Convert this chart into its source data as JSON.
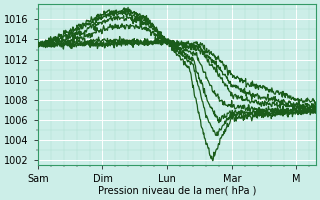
{
  "title": "",
  "xlabel": "Pression niveau de la mer( hPa )",
  "ylabel": "",
  "ylim": [
    1001.5,
    1017.5
  ],
  "yticks": [
    1002,
    1004,
    1006,
    1008,
    1010,
    1012,
    1014,
    1016
  ],
  "xlim": [
    0,
    4.3
  ],
  "xtick_positions": [
    0,
    1,
    2,
    3,
    4
  ],
  "xtick_labels": [
    "Sam",
    "Dim",
    "Lun",
    "Mar",
    "M"
  ],
  "bg_color": "#cceee8",
  "grid_major_color": "#ffffff",
  "grid_minor_color": "#aaddcc",
  "line_color": "#1a5c1a",
  "line_width": 0.9,
  "trajectories": [
    [
      0,
      1013.5,
      0.3,
      1014.2,
      0.7,
      1015.5,
      1.1,
      1016.8,
      1.4,
      1016.9,
      1.7,
      1016.0,
      2.0,
      1013.8,
      2.35,
      1011.0,
      2.55,
      1004.8,
      2.7,
      1002.0,
      2.85,
      1004.5,
      3.0,
      1006.2,
      3.5,
      1006.5,
      4.0,
      1006.8,
      4.3,
      1006.9
    ],
    [
      0,
      1013.5,
      0.3,
      1014.0,
      0.7,
      1015.2,
      1.1,
      1016.5,
      1.4,
      1016.6,
      1.7,
      1015.8,
      2.0,
      1013.8,
      2.4,
      1011.5,
      2.6,
      1006.5,
      2.75,
      1004.5,
      2.9,
      1005.8,
      3.0,
      1006.5,
      3.5,
      1006.6,
      4.0,
      1006.7,
      4.3,
      1006.8
    ],
    [
      0,
      1013.5,
      0.3,
      1013.8,
      0.7,
      1014.8,
      1.1,
      1016.0,
      1.4,
      1016.2,
      1.7,
      1015.5,
      2.0,
      1013.8,
      2.4,
      1012.0,
      2.65,
      1007.5,
      2.8,
      1006.0,
      3.0,
      1006.8,
      3.5,
      1006.8,
      4.0,
      1006.8,
      4.3,
      1007.0
    ],
    [
      0,
      1013.5,
      0.3,
      1013.6,
      0.7,
      1014.2,
      1.1,
      1015.2,
      1.4,
      1015.4,
      1.7,
      1015.0,
      2.0,
      1013.8,
      2.45,
      1012.5,
      2.7,
      1009.0,
      2.9,
      1007.5,
      3.2,
      1007.2,
      3.5,
      1007.0,
      4.0,
      1007.0,
      4.3,
      1007.1
    ],
    [
      0,
      1013.5,
      0.5,
      1013.6,
      1.0,
      1013.9,
      1.5,
      1013.8,
      2.0,
      1013.8,
      2.5,
      1013.0,
      2.8,
      1010.5,
      3.0,
      1008.5,
      3.3,
      1007.8,
      3.7,
      1007.5,
      4.0,
      1007.3,
      4.3,
      1007.2
    ],
    [
      0,
      1013.5,
      0.5,
      1013.5,
      1.0,
      1013.6,
      1.5,
      1013.7,
      2.0,
      1013.8,
      2.5,
      1013.2,
      2.8,
      1011.2,
      3.0,
      1009.5,
      3.3,
      1008.5,
      3.7,
      1008.0,
      4.0,
      1007.5,
      4.3,
      1007.4
    ],
    [
      0,
      1013.5,
      0.5,
      1013.5,
      1.0,
      1013.5,
      1.5,
      1013.6,
      2.0,
      1013.8,
      2.5,
      1013.5,
      2.8,
      1012.0,
      3.0,
      1010.5,
      3.3,
      1009.5,
      3.7,
      1008.8,
      4.0,
      1008.0,
      4.3,
      1007.8
    ]
  ]
}
